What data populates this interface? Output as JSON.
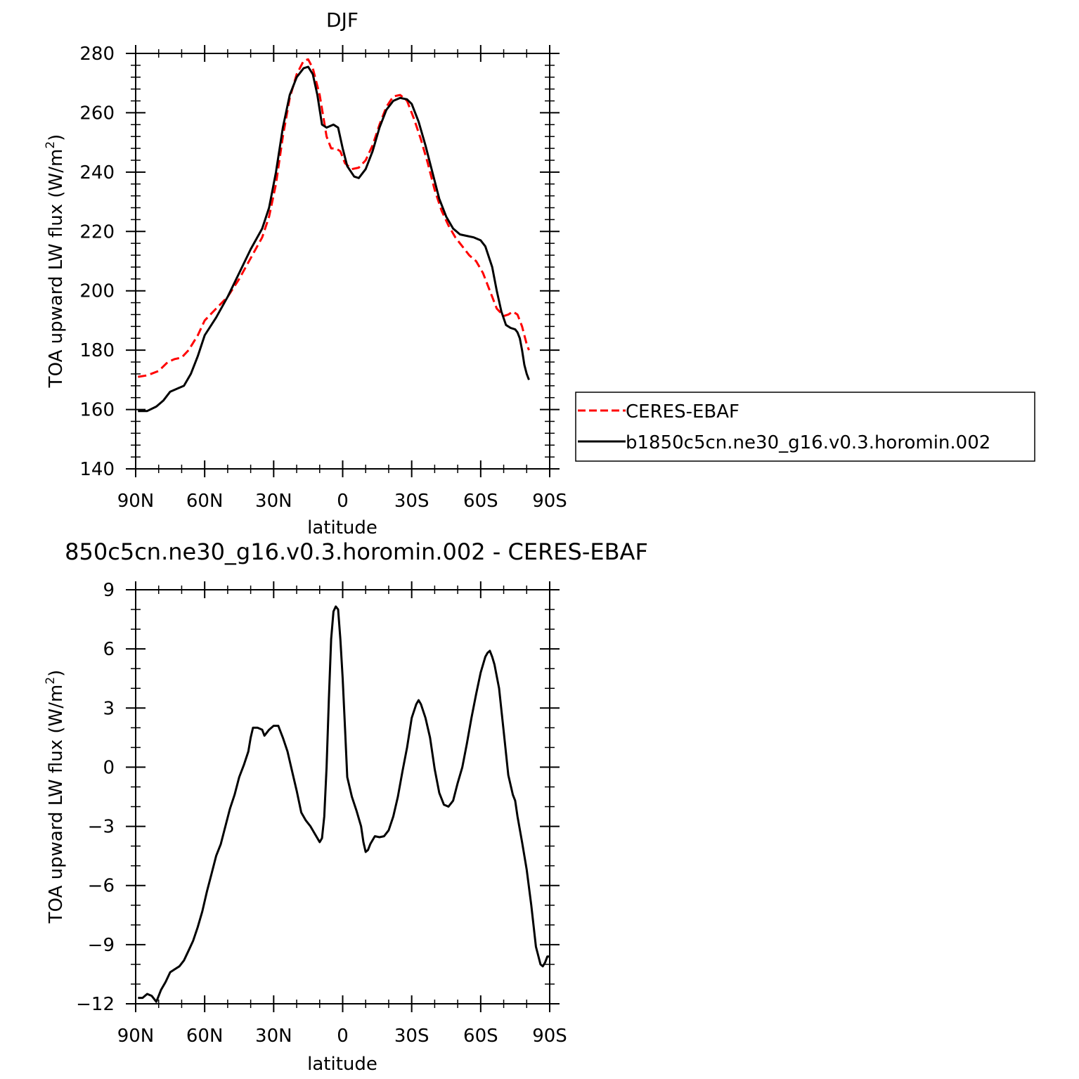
{
  "chart_data": [
    {
      "type": "line",
      "title": "DJF",
      "xlabel": "latitude",
      "ylabel_main": "TOA upward LW flux (W/m",
      "ylabel_sup": "2",
      "ylabel_tail": ")",
      "xlim": [
        -90,
        90
      ],
      "ylim": [
        140,
        280
      ],
      "x_ticks": [
        {
          "value": -90,
          "label": "90N"
        },
        {
          "value": -60,
          "label": "60N"
        },
        {
          "value": -30,
          "label": "30N"
        },
        {
          "value": 0,
          "label": "0"
        },
        {
          "value": 30,
          "label": "30S"
        },
        {
          "value": 60,
          "label": "60S"
        },
        {
          "value": 90,
          "label": "90S"
        }
      ],
      "y_ticks": [
        140,
        160,
        180,
        200,
        220,
        240,
        260,
        280
      ],
      "grid": false,
      "legend_position": "right",
      "series": [
        {
          "name": "CERES-EBAF",
          "color": "#ff0000",
          "dash": true,
          "points": [
            [
              -89,
              171
            ],
            [
              -85,
              171.5
            ],
            [
              -80,
              173
            ],
            [
              -76,
              176
            ],
            [
              -73,
              177
            ],
            [
              -70,
              177.5
            ],
            [
              -67,
              180
            ],
            [
              -63,
              185
            ],
            [
              -60,
              190
            ],
            [
              -55,
              194
            ],
            [
              -50,
              198
            ],
            [
              -45,
              204
            ],
            [
              -40,
              211
            ],
            [
              -35,
              218
            ],
            [
              -32,
              225
            ],
            [
              -29,
              236
            ],
            [
              -26,
              252
            ],
            [
              -23,
              265
            ],
            [
              -20,
              273
            ],
            [
              -17,
              277.5
            ],
            [
              -15,
              278
            ],
            [
              -13,
              275
            ],
            [
              -10,
              266
            ],
            [
              -7,
              252
            ],
            [
              -5,
              248
            ],
            [
              -3,
              248
            ],
            [
              -1,
              247
            ],
            [
              1,
              243
            ],
            [
              4,
              241
            ],
            [
              7,
              241.5
            ],
            [
              10,
              244
            ],
            [
              13,
              249
            ],
            [
              16,
              256
            ],
            [
              19,
              262
            ],
            [
              22,
              265.5
            ],
            [
              25,
              266
            ],
            [
              28,
              264
            ],
            [
              31,
              258
            ],
            [
              34,
              251
            ],
            [
              37,
              243
            ],
            [
              40,
              234
            ],
            [
              43,
              227
            ],
            [
              46,
              222
            ],
            [
              49,
              218
            ],
            [
              52,
              215
            ],
            [
              55,
              212
            ],
            [
              58,
              210
            ],
            [
              61,
              206
            ],
            [
              64,
              200
            ],
            [
              67,
              194
            ],
            [
              70,
              191.5
            ],
            [
              72,
              192
            ],
            [
              74,
              193
            ],
            [
              76,
              192
            ],
            [
              78,
              188
            ],
            [
              80,
              182
            ],
            [
              81,
              180
            ]
          ]
        },
        {
          "name": "b1850c5cn.ne30_g16.v0.3.horomin.002",
          "color": "#000000",
          "dash": false,
          "points": [
            [
              -89,
              159.5
            ],
            [
              -85,
              159.5
            ],
            [
              -81,
              161
            ],
            [
              -78,
              163
            ],
            [
              -75,
              166
            ],
            [
              -72,
              167
            ],
            [
              -69,
              168
            ],
            [
              -66,
              172
            ],
            [
              -63,
              178
            ],
            [
              -60,
              185
            ],
            [
              -55,
              191
            ],
            [
              -50,
              198
            ],
            [
              -45,
              206
            ],
            [
              -40,
              214
            ],
            [
              -35,
              221
            ],
            [
              -32,
              228
            ],
            [
              -29,
              240
            ],
            [
              -26,
              255
            ],
            [
              -23,
              266
            ],
            [
              -20,
              272
            ],
            [
              -17,
              275
            ],
            [
              -15,
              275.5
            ],
            [
              -13,
              273
            ],
            [
              -11,
              266
            ],
            [
              -9,
              256
            ],
            [
              -7,
              255
            ],
            [
              -4,
              256
            ],
            [
              -2,
              255
            ],
            [
              0,
              248
            ],
            [
              2,
              242
            ],
            [
              5,
              238.5
            ],
            [
              7,
              238
            ],
            [
              10,
              241
            ],
            [
              13,
              247
            ],
            [
              16,
              255
            ],
            [
              19,
              261
            ],
            [
              22,
              264
            ],
            [
              25,
              265
            ],
            [
              28,
              264.5
            ],
            [
              30,
              263
            ],
            [
              33,
              257
            ],
            [
              36,
              249
            ],
            [
              39,
              240
            ],
            [
              42,
              231
            ],
            [
              45,
              225
            ],
            [
              48,
              221
            ],
            [
              51,
              219
            ],
            [
              54,
              218.5
            ],
            [
              57,
              218
            ],
            [
              60,
              217
            ],
            [
              62,
              215
            ],
            [
              65,
              208
            ],
            [
              67,
              200
            ],
            [
              69,
              193
            ],
            [
              71,
              188.5
            ],
            [
              73,
              187.5
            ],
            [
              75,
              187
            ],
            [
              76,
              186
            ],
            [
              77,
              184
            ],
            [
              78,
              180
            ],
            [
              79,
              175
            ],
            [
              80,
              172
            ],
            [
              81,
              170
            ]
          ]
        }
      ]
    },
    {
      "type": "line",
      "title": "850c5cn.ne30_g16.v0.3.horomin.002 - CERES-EBAF",
      "xlabel": "latitude",
      "ylabel_main": "TOA upward LW flux (W/m",
      "ylabel_sup": "2",
      "ylabel_tail": ")",
      "xlim": [
        -90,
        90
      ],
      "ylim": [
        -12,
        9
      ],
      "x_ticks": [
        {
          "value": -90,
          "label": "90N"
        },
        {
          "value": -60,
          "label": "60N"
        },
        {
          "value": -30,
          "label": "30N"
        },
        {
          "value": 0,
          "label": "0"
        },
        {
          "value": 30,
          "label": "30S"
        },
        {
          "value": 60,
          "label": "60S"
        },
        {
          "value": 90,
          "label": "90S"
        }
      ],
      "y_ticks": [
        -12,
        -9,
        -6,
        -3,
        0,
        3,
        6,
        9
      ],
      "y_tick_labels": [
        "−12",
        "−9",
        "−6",
        "−3",
        "0",
        "3",
        "6",
        "9"
      ],
      "grid": false,
      "series": [
        {
          "color": "#000000",
          "dash": false,
          "points": [
            [
              -89,
              -11.7
            ],
            [
              -87,
              -11.7
            ],
            [
              -85,
              -11.5
            ],
            [
              -83,
              -11.6
            ],
            [
              -81,
              -11.9
            ],
            [
              -79,
              -11.3
            ],
            [
              -77,
              -10.9
            ],
            [
              -75,
              -10.4
            ],
            [
              -73,
              -10.25
            ],
            [
              -71,
              -10.1
            ],
            [
              -69,
              -9.8
            ],
            [
              -67,
              -9.3
            ],
            [
              -65,
              -8.8
            ],
            [
              -63,
              -8.1
            ],
            [
              -61,
              -7.3
            ],
            [
              -59,
              -6.3
            ],
            [
              -57,
              -5.4
            ],
            [
              -55,
              -4.5
            ],
            [
              -53,
              -3.9
            ],
            [
              -51,
              -3.0
            ],
            [
              -49,
              -2.1
            ],
            [
              -47,
              -1.4
            ],
            [
              -45,
              -0.5
            ],
            [
              -43,
              0.1
            ],
            [
              -41,
              0.8
            ],
            [
              -40,
              1.5
            ],
            [
              -39,
              2.0
            ],
            [
              -37,
              2.0
            ],
            [
              -35,
              1.9
            ],
            [
              -34,
              1.6
            ],
            [
              -32,
              1.9
            ],
            [
              -30,
              2.1
            ],
            [
              -28,
              2.1
            ],
            [
              -27,
              1.8
            ],
            [
              -26,
              1.5
            ],
            [
              -24,
              0.8
            ],
            [
              -22,
              -0.2
            ],
            [
              -20,
              -1.2
            ],
            [
              -18,
              -2.3
            ],
            [
              -16,
              -2.7
            ],
            [
              -14,
              -3.0
            ],
            [
              -12,
              -3.4
            ],
            [
              -10,
              -3.8
            ],
            [
              -9,
              -3.6
            ],
            [
              -8,
              -2.5
            ],
            [
              -7,
              0
            ],
            [
              -6,
              3.5
            ],
            [
              -5,
              6.5
            ],
            [
              -4,
              7.9
            ],
            [
              -3,
              8.15
            ],
            [
              -2,
              8.0
            ],
            [
              -1,
              6.5
            ],
            [
              0,
              4.5
            ],
            [
              1,
              2.0
            ],
            [
              2,
              -0.5
            ],
            [
              4,
              -1.5
            ],
            [
              6,
              -2.2
            ],
            [
              8,
              -3.0
            ],
            [
              9,
              -3.8
            ],
            [
              10,
              -4.3
            ],
            [
              11,
              -4.2
            ],
            [
              12,
              -3.9
            ],
            [
              13,
              -3.7
            ],
            [
              14,
              -3.5
            ],
            [
              16,
              -3.55
            ],
            [
              18,
              -3.5
            ],
            [
              20,
              -3.2
            ],
            [
              22,
              -2.5
            ],
            [
              24,
              -1.5
            ],
            [
              26,
              -0.2
            ],
            [
              28,
              1.0
            ],
            [
              30,
              2.5
            ],
            [
              32,
              3.2
            ],
            [
              33,
              3.4
            ],
            [
              34,
              3.2
            ],
            [
              36,
              2.5
            ],
            [
              38,
              1.5
            ],
            [
              40,
              -0.1
            ],
            [
              42,
              -1.3
            ],
            [
              44,
              -1.9
            ],
            [
              46,
              -2.0
            ],
            [
              48,
              -1.7
            ],
            [
              50,
              -0.8
            ],
            [
              52,
              0
            ],
            [
              54,
              1.2
            ],
            [
              56,
              2.5
            ],
            [
              58,
              3.7
            ],
            [
              60,
              4.8
            ],
            [
              62,
              5.6
            ],
            [
              63,
              5.8
            ],
            [
              64,
              5.9
            ],
            [
              65,
              5.6
            ],
            [
              66,
              5.2
            ],
            [
              68,
              4.0
            ],
            [
              70,
              1.8
            ],
            [
              72,
              -0.4
            ],
            [
              74,
              -1.4
            ],
            [
              75,
              -1.7
            ],
            [
              76,
              -2.5
            ],
            [
              78,
              -3.8
            ],
            [
              80,
              -5.2
            ],
            [
              82,
              -7.0
            ],
            [
              84,
              -9.1
            ],
            [
              86,
              -10.0
            ],
            [
              87,
              -10.1
            ],
            [
              88,
              -9.9
            ],
            [
              89,
              -9.6
            ],
            [
              90,
              -9.6
            ]
          ]
        }
      ]
    }
  ]
}
